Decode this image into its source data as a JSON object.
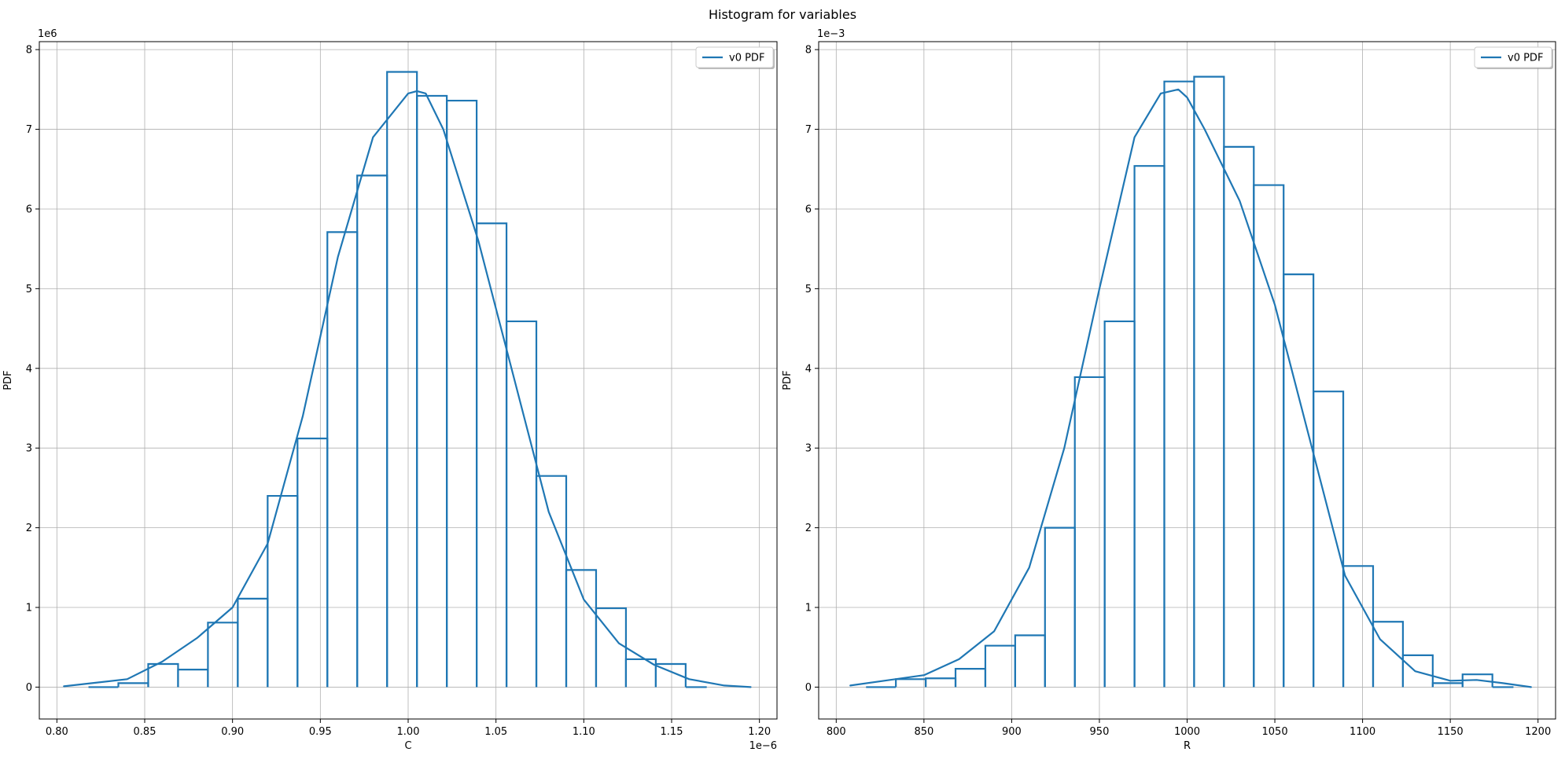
{
  "figure": {
    "suptitle": "Histogram for variables",
    "line_color": "#1f77b4",
    "grid_color": "#b0b0b0"
  },
  "chart_data": [
    {
      "type": "bar",
      "subtype": "histogram-step-with-pdf-line",
      "xlabel": "C",
      "ylabel": "PDF",
      "x_multiplier": "1e−6",
      "y_multiplier": "1e6",
      "x_scale": 1e-06,
      "y_scale": 1000000.0,
      "xlim": [
        0.79,
        1.21
      ],
      "ylim": [
        -0.4,
        8.1
      ],
      "xticks": [
        0.8,
        0.85,
        0.9,
        0.95,
        1.0,
        1.05,
        1.1,
        1.15,
        1.2
      ],
      "xtick_labels": [
        "0.80",
        "0.85",
        "0.90",
        "0.95",
        "1.00",
        "1.05",
        "1.10",
        "1.15",
        "1.20"
      ],
      "yticks": [
        0,
        1,
        2,
        3,
        4,
        5,
        6,
        7,
        8
      ],
      "ytick_labels": [
        "0",
        "1",
        "2",
        "3",
        "4",
        "5",
        "6",
        "7",
        "8"
      ],
      "grid": true,
      "legend": {
        "position": "upper right",
        "entries": [
          "v0 PDF"
        ]
      },
      "bins": [
        {
          "x0": 0.818,
          "x1": 0.835,
          "value": 0.0
        },
        {
          "x0": 0.835,
          "x1": 0.852,
          "value": 0.05
        },
        {
          "x0": 0.852,
          "x1": 0.869,
          "value": 0.29
        },
        {
          "x0": 0.869,
          "x1": 0.886,
          "value": 0.22
        },
        {
          "x0": 0.886,
          "x1": 0.903,
          "value": 0.81
        },
        {
          "x0": 0.903,
          "x1": 0.92,
          "value": 1.11
        },
        {
          "x0": 0.92,
          "x1": 0.937,
          "value": 2.4
        },
        {
          "x0": 0.937,
          "x1": 0.954,
          "value": 3.12
        },
        {
          "x0": 0.954,
          "x1": 0.971,
          "value": 5.71
        },
        {
          "x0": 0.971,
          "x1": 0.988,
          "value": 6.42
        },
        {
          "x0": 0.988,
          "x1": 1.005,
          "value": 7.72
        },
        {
          "x0": 1.005,
          "x1": 1.022,
          "value": 7.42
        },
        {
          "x0": 1.022,
          "x1": 1.039,
          "value": 7.36
        },
        {
          "x0": 1.039,
          "x1": 1.056,
          "value": 5.82
        },
        {
          "x0": 1.056,
          "x1": 1.073,
          "value": 4.59
        },
        {
          "x0": 1.073,
          "x1": 1.09,
          "value": 2.65
        },
        {
          "x0": 1.09,
          "x1": 1.107,
          "value": 1.47
        },
        {
          "x0": 1.107,
          "x1": 1.124,
          "value": 0.99
        },
        {
          "x0": 1.124,
          "x1": 1.141,
          "value": 0.35
        },
        {
          "x0": 1.141,
          "x1": 1.158,
          "value": 0.29
        },
        {
          "x0": 1.158,
          "x1": 1.17,
          "value": 0.0
        }
      ],
      "pdf_line": {
        "name": "v0 PDF",
        "x": [
          0.804,
          0.84,
          0.86,
          0.88,
          0.9,
          0.92,
          0.94,
          0.96,
          0.98,
          1.0,
          1.005,
          1.01,
          1.02,
          1.04,
          1.06,
          1.08,
          1.1,
          1.12,
          1.14,
          1.16,
          1.18,
          1.195
        ],
        "y": [
          0.01,
          0.1,
          0.32,
          0.62,
          1.0,
          1.8,
          3.4,
          5.4,
          6.9,
          7.45,
          7.48,
          7.45,
          7.0,
          5.6,
          3.9,
          2.2,
          1.1,
          0.55,
          0.28,
          0.1,
          0.02,
          0.0
        ]
      }
    },
    {
      "type": "bar",
      "subtype": "histogram-step-with-pdf-line",
      "xlabel": "R",
      "ylabel": "PDF",
      "x_multiplier": "",
      "y_multiplier": "1e−3",
      "x_scale": 1,
      "y_scale": 0.001,
      "xlim": [
        790,
        1210
      ],
      "ylim": [
        -0.4,
        8.1
      ],
      "xticks": [
        800,
        850,
        900,
        950,
        1000,
        1050,
        1100,
        1150,
        1200
      ],
      "xtick_labels": [
        "800",
        "850",
        "900",
        "950",
        "1000",
        "1050",
        "1100",
        "1150",
        "1200"
      ],
      "yticks": [
        0,
        1,
        2,
        3,
        4,
        5,
        6,
        7,
        8
      ],
      "ytick_labels": [
        "0",
        "1",
        "2",
        "3",
        "4",
        "5",
        "6",
        "7",
        "8"
      ],
      "grid": true,
      "legend": {
        "position": "upper right",
        "entries": [
          "v0 PDF"
        ]
      },
      "bins": [
        {
          "x0": 817,
          "x1": 834,
          "value": 0.0
        },
        {
          "x0": 834,
          "x1": 851,
          "value": 0.1
        },
        {
          "x0": 851,
          "x1": 868,
          "value": 0.11
        },
        {
          "x0": 868,
          "x1": 885,
          "value": 0.23
        },
        {
          "x0": 885,
          "x1": 902,
          "value": 0.52
        },
        {
          "x0": 902,
          "x1": 919,
          "value": 0.65
        },
        {
          "x0": 919,
          "x1": 936,
          "value": 2.0
        },
        {
          "x0": 936,
          "x1": 953,
          "value": 3.89
        },
        {
          "x0": 953,
          "x1": 970,
          "value": 4.59
        },
        {
          "x0": 970,
          "x1": 987,
          "value": 6.54
        },
        {
          "x0": 987,
          "x1": 1004,
          "value": 7.6
        },
        {
          "x0": 1004,
          "x1": 1021,
          "value": 7.66
        },
        {
          "x0": 1021,
          "x1": 1038,
          "value": 6.78
        },
        {
          "x0": 1038,
          "x1": 1055,
          "value": 6.3
        },
        {
          "x0": 1055,
          "x1": 1072,
          "value": 5.18
        },
        {
          "x0": 1072,
          "x1": 1089,
          "value": 3.71
        },
        {
          "x0": 1089,
          "x1": 1106,
          "value": 1.52
        },
        {
          "x0": 1106,
          "x1": 1123,
          "value": 0.82
        },
        {
          "x0": 1123,
          "x1": 1140,
          "value": 0.4
        },
        {
          "x0": 1140,
          "x1": 1157,
          "value": 0.05
        },
        {
          "x0": 1157,
          "x1": 1174,
          "value": 0.16
        },
        {
          "x0": 1174,
          "x1": 1186,
          "value": 0.0
        }
      ],
      "pdf_line": {
        "name": "v0 PDF",
        "x": [
          808,
          850,
          870,
          890,
          910,
          930,
          950,
          970,
          985,
          995,
          1000,
          1010,
          1030,
          1050,
          1070,
          1090,
          1110,
          1130,
          1150,
          1165,
          1180,
          1196
        ],
        "y": [
          0.02,
          0.15,
          0.35,
          0.7,
          1.5,
          3.0,
          5.0,
          6.9,
          7.45,
          7.5,
          7.4,
          7.0,
          6.1,
          4.8,
          3.1,
          1.4,
          0.6,
          0.2,
          0.08,
          0.09,
          0.05,
          0.0
        ]
      }
    }
  ]
}
